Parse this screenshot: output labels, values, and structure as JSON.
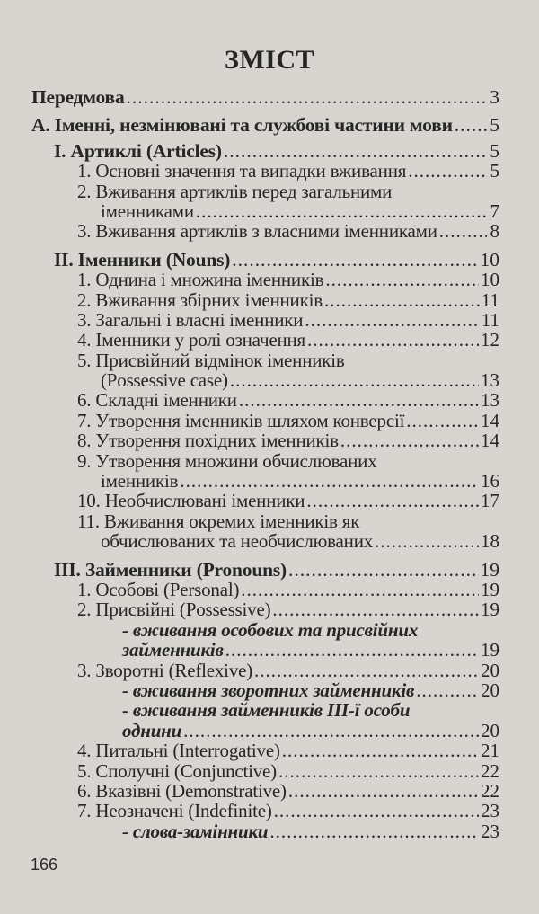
{
  "title": "ЗМІСТ",
  "page_number": "166",
  "entries": [
    {
      "text": "Передмова",
      "page": "3",
      "level": 0,
      "style": "bold"
    },
    {
      "text": "А. Іменні, незмінювані та службові частини мови",
      "page": "5",
      "level": 0,
      "style": "bold"
    },
    {
      "text": "I. Артиклі (Articles)",
      "page": "5",
      "level": 1,
      "style": "bold"
    },
    {
      "text": "1. Основні значення та випадки вживання",
      "page": "5",
      "level": 2
    },
    {
      "text": "2. Вживання артиклів перед загальними",
      "page": null,
      "level": 2
    },
    {
      "text": "іменниками",
      "page": "7",
      "level": 3
    },
    {
      "text": "3. Вживання артиклів з власними іменниками",
      "page": "8",
      "level": 2
    },
    {
      "text": "II. Іменники (Nouns)",
      "page": "10",
      "level": 1,
      "style": "bold"
    },
    {
      "text": "1. Однина і множина іменників",
      "page": "10",
      "level": 2
    },
    {
      "text": "2. Вживання збірних іменників",
      "page": "11",
      "level": 2
    },
    {
      "text": "3. Загальні і власні іменники",
      "page": "11",
      "level": 2
    },
    {
      "text": "4. Іменники у ролі означення",
      "page": "12",
      "level": 2
    },
    {
      "text": "5. Присвійний відмінок іменників",
      "page": null,
      "level": 2
    },
    {
      "text": "(Possessive case)",
      "page": "13",
      "level": 3
    },
    {
      "text": "6. Складні іменники",
      "page": "13",
      "level": 2
    },
    {
      "text": "7. Утворення іменників шляхом конверсії",
      "page": "14",
      "level": 2
    },
    {
      "text": "8. Утворення похідних іменників",
      "page": "14",
      "level": 2
    },
    {
      "text": "9. Утворення множини обчислюваних",
      "page": null,
      "level": 2
    },
    {
      "text": "іменників",
      "page": "16",
      "level": 3
    },
    {
      "text": "10. Необчислювані іменники",
      "page": "17",
      "level": 2
    },
    {
      "text": "11. Вживання окремих іменників як",
      "page": null,
      "level": 2
    },
    {
      "text": "обчислюваних та необчислюваних",
      "page": "18",
      "level": 3
    },
    {
      "text": "III. Займенники (Pronouns)",
      "page": "19",
      "level": 1,
      "style": "bold"
    },
    {
      "text": "1. Особові (Personal)",
      "page": "19",
      "level": 2
    },
    {
      "text": "2. Присвійні (Possessive)",
      "page": "19",
      "level": 2
    },
    {
      "text": "- вживання особових та присвійних",
      "page": null,
      "level": 4,
      "style": "italic"
    },
    {
      "text": "займенників",
      "page": "19",
      "level": 4,
      "style": "italic"
    },
    {
      "text": "3. Зворотні (Reflexive)",
      "page": "20",
      "level": 2
    },
    {
      "text": "- вживання зворотних займенників",
      "page": "20",
      "level": 4,
      "style": "italic"
    },
    {
      "text": "- вживання займенників III-ї особи",
      "page": null,
      "level": 4,
      "style": "italic"
    },
    {
      "text": "однини",
      "page": "20",
      "level": 4,
      "style": "italic"
    },
    {
      "text": "4. Питальні (Interrogative)",
      "page": "21",
      "level": 2
    },
    {
      "text": "5. Сполучні (Conjunctive)",
      "page": "22",
      "level": 2
    },
    {
      "text": "6. Вказівні (Demonstrative)",
      "page": "22",
      "level": 2
    },
    {
      "text": "7. Неозначені (Indefinite)",
      "page": "23",
      "level": 2
    },
    {
      "text": "- слова-замінники",
      "page": "23",
      "level": 4,
      "style": "italic"
    }
  ]
}
